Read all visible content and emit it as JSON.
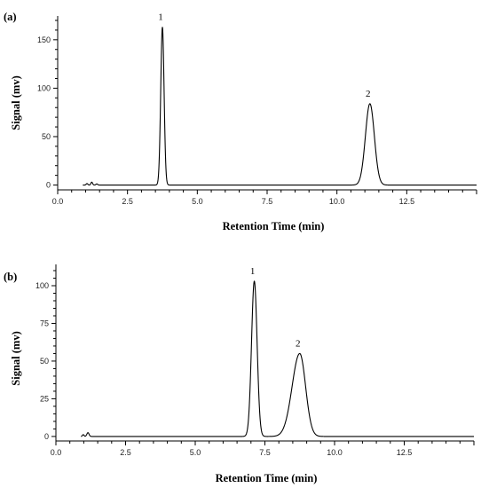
{
  "chart_data": [
    {
      "type": "line",
      "panel_label": "(a)",
      "title": "",
      "xlabel": "Retention Time (min)",
      "ylabel": "Signal (mv)",
      "xlim": [
        0,
        15
      ],
      "ylim": [
        -5,
        170
      ],
      "xticks": [
        0,
        2.5,
        5,
        7.5,
        10,
        12.5
      ],
      "xtick_labels": [
        "0.0",
        "2.5",
        "5.0",
        "7.5",
        "10.0",
        "12.5"
      ],
      "yticks": [
        0,
        50,
        100,
        150
      ],
      "ytick_labels": [
        "0",
        "50",
        "100",
        "150"
      ],
      "grid": false,
      "baseline": 0,
      "trace_range": [
        0.9,
        15
      ],
      "peaks": [
        {
          "label": "1",
          "rt": 3.75,
          "height": 163,
          "width": 0.06
        },
        {
          "label": "2",
          "rt": 11.18,
          "height": 84,
          "width": 0.16
        }
      ],
      "minor_peaks": [
        {
          "rt": 1.05,
          "height": 1.5,
          "width": 0.03
        },
        {
          "rt": 1.22,
          "height": 3,
          "width": 0.03
        },
        {
          "rt": 1.4,
          "height": 1.2,
          "width": 0.03
        }
      ]
    },
    {
      "type": "line",
      "panel_label": "(b)",
      "title": "",
      "xlabel": "Retention Time (min)",
      "ylabel": "Signal (mv)",
      "xlim": [
        0,
        15
      ],
      "ylim": [
        -3,
        110
      ],
      "xticks": [
        0,
        2.5,
        5,
        7.5,
        10,
        12.5
      ],
      "xtick_labels": [
        "0.0",
        "2.5",
        "5.0",
        "7.5",
        "10.0",
        "12.5"
      ],
      "yticks": [
        0,
        25,
        50,
        75,
        100
      ],
      "ytick_labels": [
        "0",
        "25",
        "50",
        "75",
        "100"
      ],
      "grid": false,
      "baseline": 0,
      "trace_range": [
        0.9,
        15
      ],
      "peaks": [
        {
          "label": "1",
          "rt": 7.12,
          "height": 103,
          "width": 0.1
        },
        {
          "label": "2",
          "rt": 8.75,
          "height": 55,
          "width": 0.21,
          "tail": 0.3
        }
      ],
      "minor_peaks": [
        {
          "rt": 0.98,
          "height": 1.2,
          "width": 0.03
        },
        {
          "rt": 1.15,
          "height": 2.5,
          "width": 0.04
        }
      ]
    }
  ]
}
